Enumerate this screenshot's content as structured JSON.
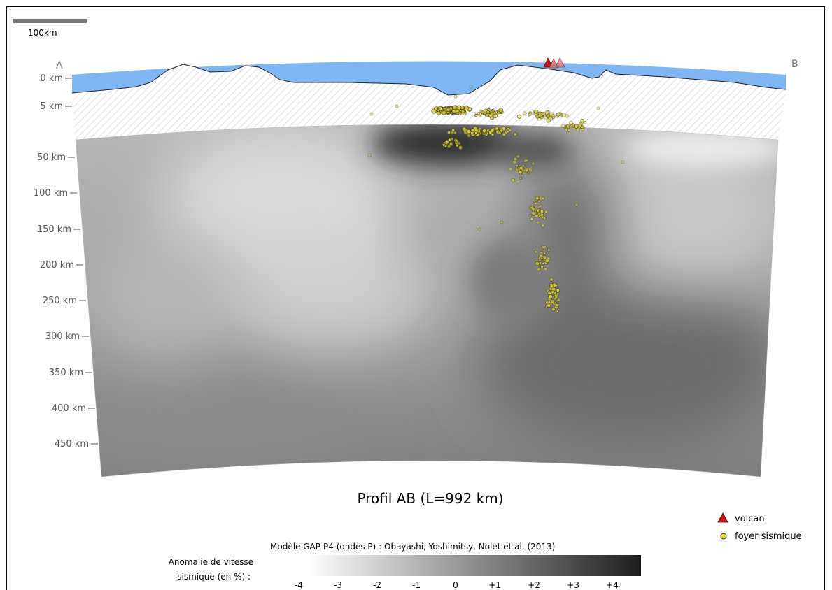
{
  "scale_bar": {
    "label": "100km"
  },
  "endpoints": {
    "start": "A",
    "end": "B"
  },
  "depth_axis": [
    "0 km",
    "5 km",
    "50 km",
    "100 km",
    "150 km",
    "200 km",
    "250 km",
    "300 km",
    "350 km",
    "400 km",
    "450 km"
  ],
  "title": "Profil AB (L=992 km)",
  "legend": {
    "volcano": "volcan",
    "earthquake": "foyer sismique"
  },
  "model_credit": "Modèle GAP-P4 (ondes P) : Obayashi, Yoshimitsy, Nolet et al. (2013)",
  "colorbar": {
    "label_line1": "Anomalie de vitesse",
    "label_line2": "sismique (en %) :",
    "ticks": [
      "-4",
      "-3",
      "-2",
      "-1",
      "0",
      "+1",
      "+2",
      "+3",
      "+4"
    ]
  },
  "colors": {
    "sea": "#7fb7f5",
    "volcano": "#cc1111",
    "earthquake": "#e0d22a"
  }
}
